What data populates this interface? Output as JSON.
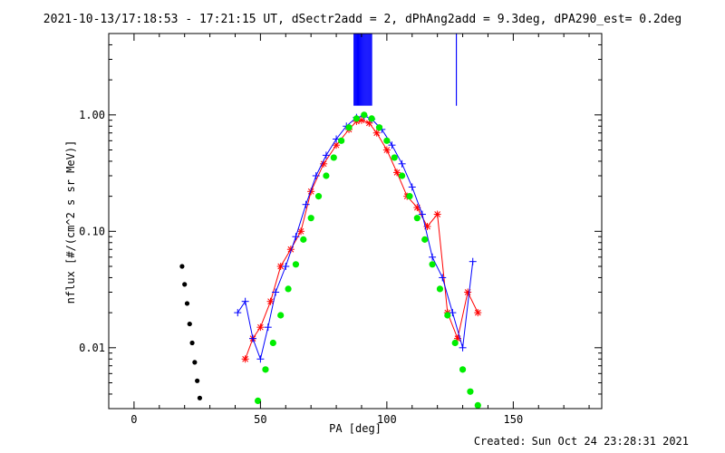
{
  "chart_data": {
    "type": "scatter",
    "title": "2021-10-13/17:18:53 - 17:21:15 UT, dSectr2add = 2, dPhAng2add = 9.3deg, dPA290_est=  0.2deg",
    "xlabel": "PA [deg]",
    "ylabel": "nflux [#/(cm^2 s sr MeV)]",
    "xlim": [
      -10,
      185
    ],
    "ylim": [
      0.003,
      5.0
    ],
    "yscale": "log",
    "xticks": [
      0,
      50,
      100,
      150
    ],
    "xtick_labels": [
      "0",
      "50",
      "100",
      "150"
    ],
    "yticks": [
      0.01,
      0.1,
      1.0
    ],
    "ytick_labels": [
      "0.01",
      "0.10",
      "1.00"
    ],
    "grid": false,
    "series": [
      {
        "color": "#ff0000",
        "marker": "asterisk",
        "x": [
          44,
          47,
          50,
          54,
          58,
          62,
          66,
          70,
          75,
          80,
          85,
          88,
          90,
          93,
          96,
          100,
          104,
          108,
          112,
          116,
          120,
          124,
          128,
          132,
          136
        ],
        "y": [
          0.008,
          0.012,
          0.015,
          0.025,
          0.05,
          0.07,
          0.1,
          0.22,
          0.38,
          0.55,
          0.75,
          0.88,
          0.9,
          0.85,
          0.7,
          0.5,
          0.32,
          0.2,
          0.16,
          0.11,
          0.14,
          0.02,
          0.012,
          0.03,
          0.02
        ]
      },
      {
        "color": "#0000ff",
        "marker": "plus",
        "x": [
          41,
          44,
          47,
          50,
          53,
          56,
          60,
          64,
          68,
          72,
          76,
          80,
          84,
          88,
          91,
          94,
          98,
          102,
          106,
          110,
          114,
          118,
          122,
          126,
          130,
          134
        ],
        "y": [
          0.02,
          0.025,
          0.012,
          0.008,
          0.015,
          0.03,
          0.05,
          0.09,
          0.17,
          0.3,
          0.45,
          0.62,
          0.8,
          0.95,
          0.98,
          0.92,
          0.75,
          0.55,
          0.38,
          0.24,
          0.14,
          0.06,
          0.04,
          0.02,
          0.01,
          0.055
        ]
      },
      {
        "color": "#00ee00",
        "marker": "circle",
        "x": [
          49,
          52,
          55,
          58,
          61,
          64,
          67,
          70,
          73,
          76,
          79,
          82,
          85,
          88,
          91,
          94,
          97,
          100,
          103,
          106,
          109,
          112,
          115,
          118,
          121,
          124,
          127,
          130,
          133,
          136
        ],
        "y": [
          0.0035,
          0.0065,
          0.011,
          0.019,
          0.032,
          0.052,
          0.085,
          0.13,
          0.2,
          0.3,
          0.43,
          0.6,
          0.78,
          0.93,
          1.0,
          0.93,
          0.78,
          0.6,
          0.43,
          0.3,
          0.2,
          0.13,
          0.085,
          0.052,
          0.032,
          0.019,
          0.011,
          0.0065,
          0.0042,
          0.0032
        ]
      },
      {
        "color": "#000000",
        "marker": "circle",
        "x": [
          19,
          20,
          21,
          22,
          23,
          24,
          25,
          26
        ],
        "y": [
          0.05,
          0.035,
          0.024,
          0.016,
          0.011,
          0.0075,
          0.0052,
          0.0037
        ]
      }
    ],
    "spikes": [
      {
        "color": "#0000ff",
        "x_from": 87,
        "x_to": 94,
        "y_min": 1.2
      },
      {
        "color": "#0000ff",
        "x_from": 127.5,
        "x_to": 127.5,
        "y_min": 1.2
      }
    ]
  },
  "footer": {
    "label": "Created:",
    "timestamp": "Sun Oct 24 23:28:31 2021"
  }
}
